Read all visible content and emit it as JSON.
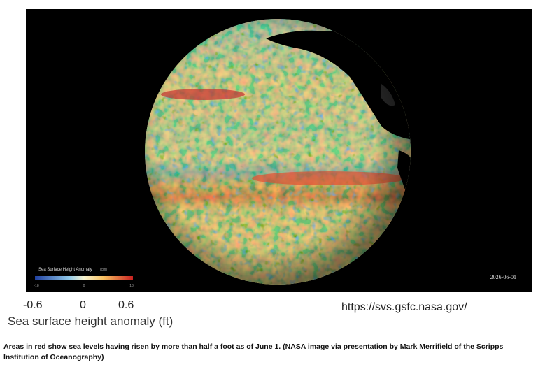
{
  "image": {
    "colorbar_title": "Sea Surface Height Anomaly",
    "colorbar_unit": "(cm)",
    "colorbar_ticks": [
      "-18",
      "0",
      "18"
    ],
    "date_stamp": "2026-06-01"
  },
  "legend": {
    "ticks": [
      "-0.6",
      "0",
      "0.6"
    ],
    "title": "Sea surface height anomaly (ft)"
  },
  "source_url": "https://svs.gsfc.nasa.gov/",
  "caption": "Areas in red show sea levels having risen by more than half a foot as of June 1.  (NASA image via presentation by Mark Merrifield of the Scripps Institution of Oceanography)"
}
